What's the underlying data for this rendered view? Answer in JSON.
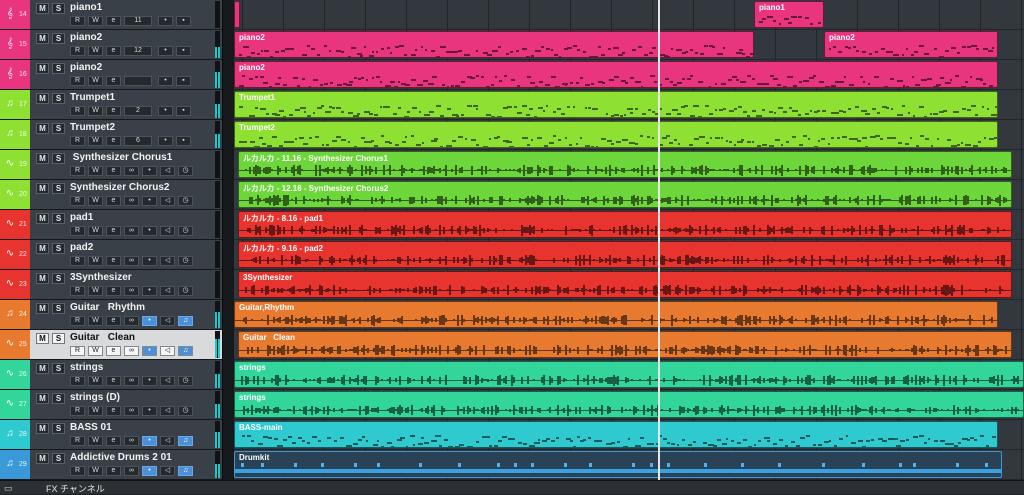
{
  "tracks": [
    {
      "num": "14",
      "name": "piano1",
      "kind": "midi",
      "color": "#e8357e",
      "icon": "keyboard-icon",
      "extra": "11",
      "meter": 0.0
    },
    {
      "num": "15",
      "name": "piano2",
      "kind": "midi",
      "color": "#e8357e",
      "icon": "keyboard-icon",
      "extra": "12",
      "meter": 0.4
    },
    {
      "num": "16",
      "name": "piano2",
      "kind": "midi",
      "color": "#e8357e",
      "icon": "keyboard-icon",
      "extra": "",
      "meter": 0.6
    },
    {
      "num": "17",
      "name": "Trumpet1",
      "kind": "midi",
      "color": "#8ee033",
      "icon": "instrument-icon",
      "extra": "2",
      "meter": 0.5
    },
    {
      "num": "18",
      "name": "Trumpet2",
      "kind": "midi",
      "color": "#8ee033",
      "icon": "instrument-icon",
      "extra": "6",
      "meter": 0.5
    },
    {
      "num": "19",
      "name": " Synthesizer Chorus1",
      "kind": "audio",
      "color": "#8ee033",
      "icon": "waveform-icon",
      "extra": "",
      "meter": 0.0
    },
    {
      "num": "20",
      "name": "Synthesizer Chorus2",
      "kind": "audio",
      "color": "#8ee033",
      "icon": "waveform-icon",
      "extra": "",
      "meter": 0.0
    },
    {
      "num": "21",
      "name": "pad1",
      "kind": "audio",
      "color": "#e8342f",
      "icon": "waveform-icon",
      "extra": "",
      "meter": 0.0
    },
    {
      "num": "22",
      "name": "pad2",
      "kind": "audio",
      "color": "#e8342f",
      "icon": "waveform-icon",
      "extra": "",
      "meter": 0.0
    },
    {
      "num": "23",
      "name": "3Synthesizer",
      "kind": "audio",
      "color": "#e8342f",
      "icon": "waveform-icon",
      "extra": "",
      "meter": 0.0
    },
    {
      "num": "24",
      "name": "Guitar   Rhythm",
      "kind": "inst",
      "color": "#e87a2f",
      "icon": "instrument-icon",
      "extra": "",
      "meter": 0.6
    },
    {
      "num": "25",
      "name": "Guitar   Clean",
      "kind": "inst",
      "color": "#e87a2f",
      "icon": "waveform-icon",
      "extra": "",
      "meter": 0.7,
      "selected": true
    },
    {
      "num": "26",
      "name": "strings",
      "kind": "audio",
      "color": "#33d69a",
      "icon": "waveform-icon",
      "extra": "",
      "meter": 0.5
    },
    {
      "num": "27",
      "name": "strings (D)",
      "kind": "audio",
      "color": "#33d69a",
      "icon": "waveform-icon",
      "extra": "",
      "meter": 0.5
    },
    {
      "num": "28",
      "name": "BASS 01",
      "kind": "inst",
      "color": "#2ecad0",
      "icon": "instrument-icon",
      "extra": "",
      "meter": 0.6
    },
    {
      "num": "29",
      "name": "Addictive Drums 2 01",
      "kind": "inst",
      "color": "#3a9ad8",
      "icon": "instrument-icon",
      "extra": "",
      "meter": 0.5
    }
  ],
  "events": [
    {
      "row": 0,
      "start": 520,
      "end": 590,
      "label": "piano1",
      "color": "#e8357e",
      "type": "midi"
    },
    {
      "row": 0,
      "start": 0,
      "end": 6,
      "label": "",
      "color": "#e8357e",
      "type": "midi"
    },
    {
      "row": 1,
      "start": 0,
      "end": 520,
      "label": "piano2",
      "color": "#e8357e",
      "type": "midi"
    },
    {
      "row": 1,
      "start": 590,
      "end": 764,
      "label": "piano2",
      "color": "#e8357e",
      "type": "midi"
    },
    {
      "row": 2,
      "start": 0,
      "end": 764,
      "label": "piano2",
      "color": "#e8357e",
      "type": "midi"
    },
    {
      "row": 3,
      "start": 0,
      "end": 764,
      "label": "Trumpet1",
      "color": "#8ee033",
      "type": "midi"
    },
    {
      "row": 4,
      "start": 0,
      "end": 764,
      "label": "Trumpet2",
      "color": "#8ee033",
      "type": "midi"
    },
    {
      "row": 5,
      "start": 4,
      "end": 778,
      "label": "ルカルカ - 11.16 - Synthesizer Chorus1",
      "color": "#6cd63a",
      "type": "audio"
    },
    {
      "row": 6,
      "start": 4,
      "end": 778,
      "label": "ルカルカ - 12.16 - Synthesizer Chorus2",
      "color": "#6cd63a",
      "type": "audio"
    },
    {
      "row": 7,
      "start": 4,
      "end": 778,
      "label": "ルカルカ - 8.16 - pad1",
      "color": "#e8342f",
      "type": "audio"
    },
    {
      "row": 8,
      "start": 4,
      "end": 778,
      "label": "ルカルカ - 9.16 - pad2",
      "color": "#e8342f",
      "type": "audio"
    },
    {
      "row": 9,
      "start": 4,
      "end": 778,
      "label": "3Synthesizer",
      "color": "#e8342f",
      "type": "audio"
    },
    {
      "row": 10,
      "start": 0,
      "end": 764,
      "label": "Guitar,Rhythm",
      "color": "#e87a2f",
      "type": "audio"
    },
    {
      "row": 11,
      "start": 4,
      "end": 778,
      "label": "Guitar   Clean",
      "color": "#e87a2f",
      "type": "audio"
    },
    {
      "row": 12,
      "start": 0,
      "end": 790,
      "label": "strings",
      "color": "#33d69a",
      "type": "audio"
    },
    {
      "row": 13,
      "start": 0,
      "end": 790,
      "label": "strings",
      "color": "#33d69a",
      "type": "audio"
    },
    {
      "row": 14,
      "start": 0,
      "end": 764,
      "label": "BASS-main",
      "color": "#2ecad0",
      "type": "midi"
    },
    {
      "row": 15,
      "start": 0,
      "end": 768,
      "label": "Drumkit",
      "color": "#2a4255",
      "type": "drum"
    }
  ],
  "footer": {
    "label": "FX チャンネル"
  },
  "buttons": {
    "mute": "M",
    "solo": "S",
    "read": "R",
    "write": "W"
  }
}
